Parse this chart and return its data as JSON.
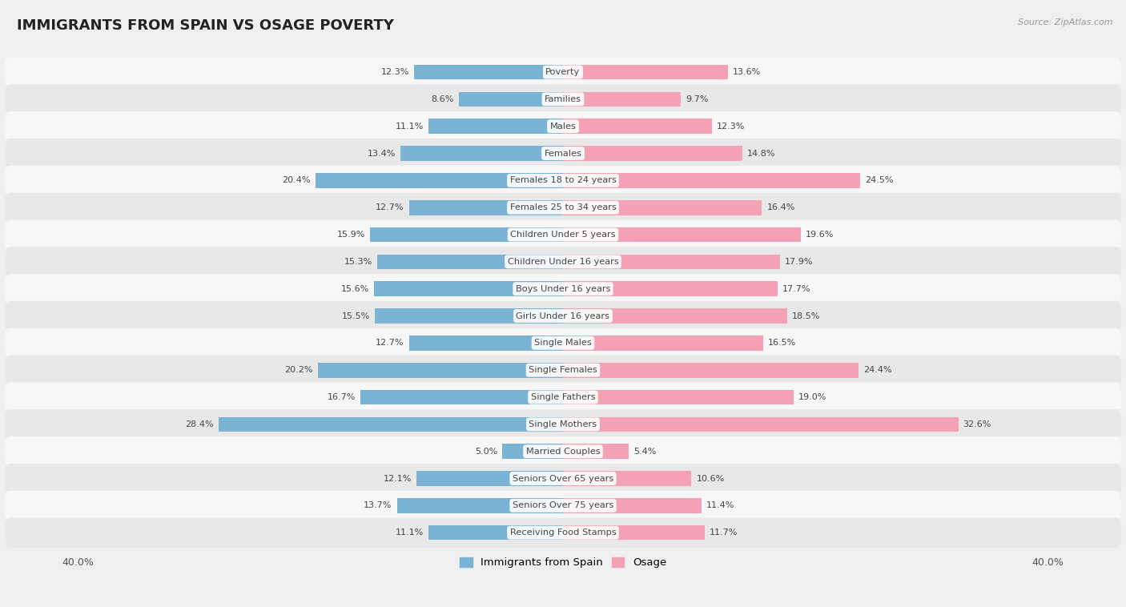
{
  "title": "IMMIGRANTS FROM SPAIN VS OSAGE POVERTY",
  "source": "Source: ZipAtlas.com",
  "categories": [
    "Poverty",
    "Families",
    "Males",
    "Females",
    "Females 18 to 24 years",
    "Females 25 to 34 years",
    "Children Under 5 years",
    "Children Under 16 years",
    "Boys Under 16 years",
    "Girls Under 16 years",
    "Single Males",
    "Single Females",
    "Single Fathers",
    "Single Mothers",
    "Married Couples",
    "Seniors Over 65 years",
    "Seniors Over 75 years",
    "Receiving Food Stamps"
  ],
  "spain_values": [
    12.3,
    8.6,
    11.1,
    13.4,
    20.4,
    12.7,
    15.9,
    15.3,
    15.6,
    15.5,
    12.7,
    20.2,
    16.7,
    28.4,
    5.0,
    12.1,
    13.7,
    11.1
  ],
  "osage_values": [
    13.6,
    9.7,
    12.3,
    14.8,
    24.5,
    16.4,
    19.6,
    17.9,
    17.7,
    18.5,
    16.5,
    24.4,
    19.0,
    32.6,
    5.4,
    10.6,
    11.4,
    11.7
  ],
  "spain_color": "#7ab3d4",
  "osage_color": "#f4a0b5",
  "background_color": "#efefef",
  "row_color_odd": "#f7f7f7",
  "row_color_even": "#e8e8e8",
  "axis_limit": 40.0,
  "legend_spain": "Immigrants from Spain",
  "legend_osage": "Osage",
  "title_fontsize": 13,
  "label_fontsize": 8.2,
  "value_fontsize": 8,
  "bar_height": 0.55
}
